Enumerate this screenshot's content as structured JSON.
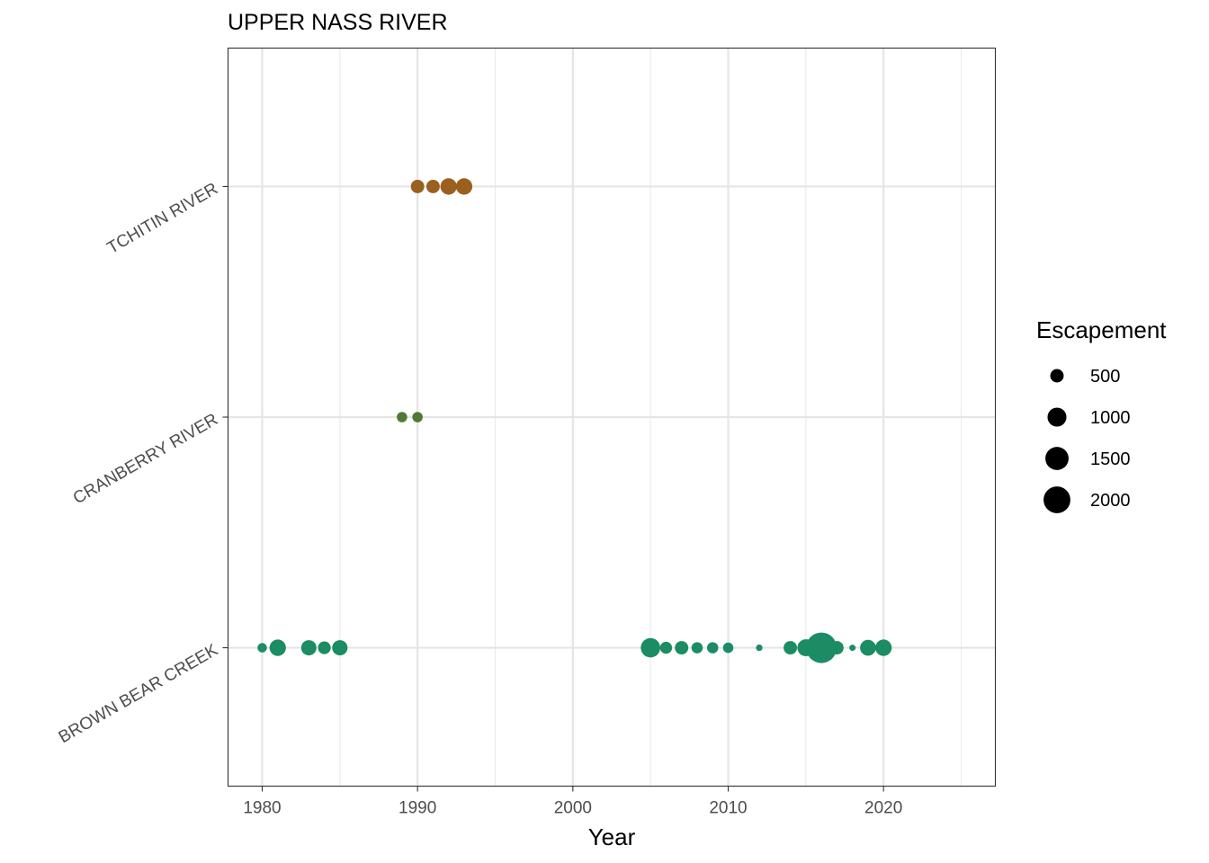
{
  "chart_data": {
    "type": "scatter",
    "title": "UPPER NASS RIVER",
    "xlabel": "Year",
    "ylabel": "",
    "xlim": [
      1977.8,
      2027.2
    ],
    "x_ticks": [
      1980,
      1990,
      2000,
      2010,
      2020
    ],
    "x_tick_labels": [
      "1980",
      "1990",
      "2000",
      "2010",
      "2020"
    ],
    "categories": [
      "BROWN BEAR CREEK",
      "CRANBERRY RIVER",
      "TCHITIN RIVER"
    ],
    "grid": true,
    "size_legend": {
      "title": "Escapement",
      "values": [
        500,
        1000,
        1500,
        2000
      ],
      "labels": [
        "500",
        "1000",
        "1500",
        "2000"
      ],
      "placement": "right"
    },
    "series": [
      {
        "category": "BROWN BEAR CREEK",
        "color": "#1b8c63",
        "points": [
          {
            "x": 1980,
            "y": 250
          },
          {
            "x": 1981,
            "y": 750
          },
          {
            "x": 1983,
            "y": 650
          },
          {
            "x": 1984,
            "y": 450
          },
          {
            "x": 1985,
            "y": 650
          },
          {
            "x": 2005,
            "y": 1050
          },
          {
            "x": 2006,
            "y": 400
          },
          {
            "x": 2007,
            "y": 500
          },
          {
            "x": 2008,
            "y": 350
          },
          {
            "x": 2009,
            "y": 350
          },
          {
            "x": 2010,
            "y": 300
          },
          {
            "x": 2012,
            "y": 120
          },
          {
            "x": 2014,
            "y": 500
          },
          {
            "x": 2015,
            "y": 800
          },
          {
            "x": 2016,
            "y": 2600
          },
          {
            "x": 2017,
            "y": 500
          },
          {
            "x": 2018,
            "y": 100
          },
          {
            "x": 2019,
            "y": 700
          },
          {
            "x": 2020,
            "y": 750
          }
        ]
      },
      {
        "category": "CRANBERRY RIVER",
        "color": "#4f7a36",
        "points": [
          {
            "x": 1989,
            "y": 300
          },
          {
            "x": 1990,
            "y": 300
          }
        ]
      },
      {
        "category": "TCHITIN RIVER",
        "color": "#9b5f1f",
        "points": [
          {
            "x": 1990,
            "y": 500
          },
          {
            "x": 1991,
            "y": 500
          },
          {
            "x": 1992,
            "y": 750
          },
          {
            "x": 1993,
            "y": 750
          }
        ]
      }
    ]
  }
}
